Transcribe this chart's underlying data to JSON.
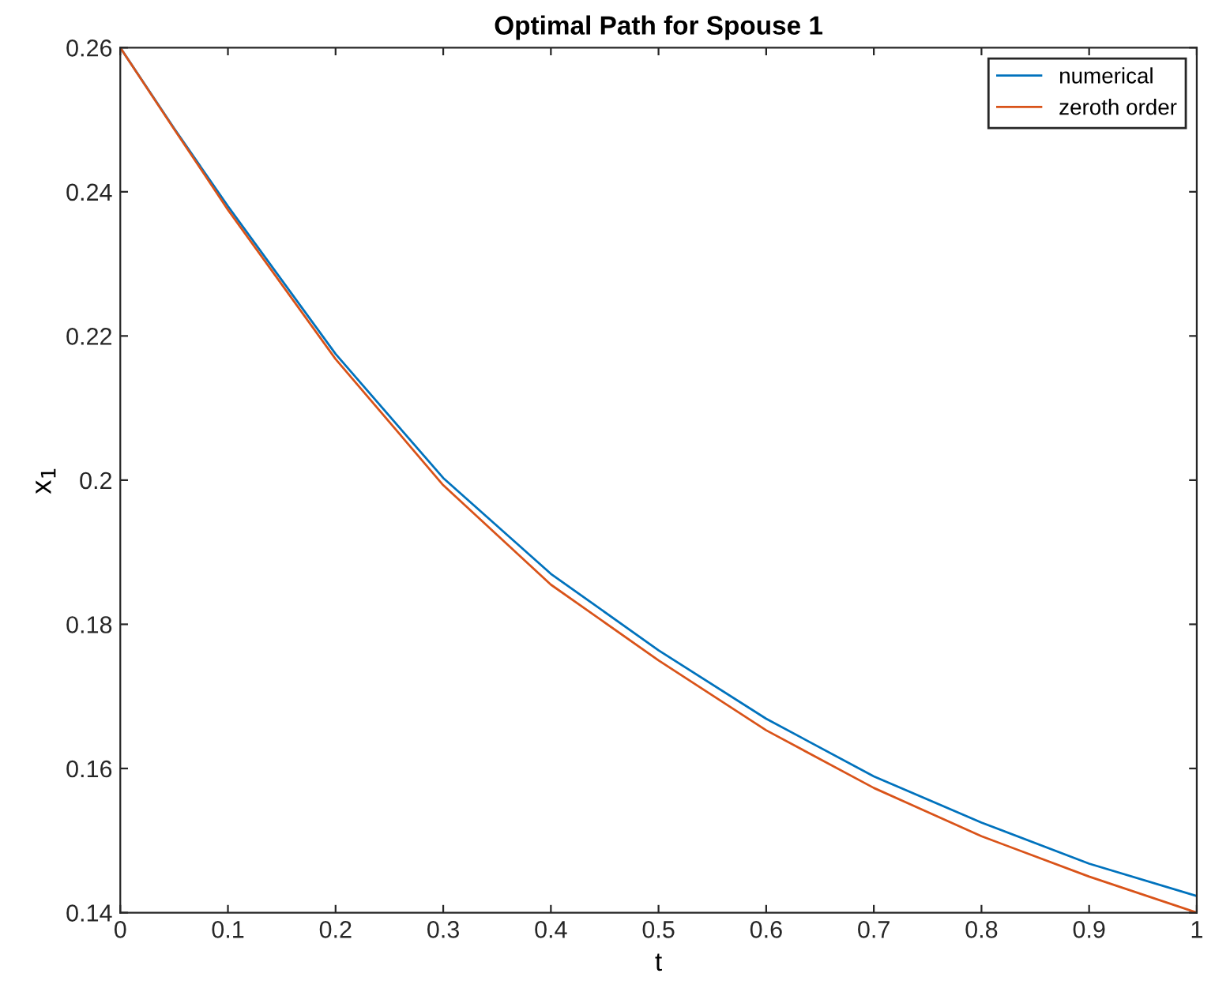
{
  "chart_data": {
    "type": "line",
    "title": "Optimal Path for Spouse 1",
    "xlabel": "t",
    "ylabel": "x$_{1}$",
    "x": [
      0,
      0.05,
      0.1,
      0.2,
      0.3,
      0.4,
      0.5,
      0.6,
      0.7,
      0.8,
      0.9,
      1
    ],
    "series": [
      {
        "name": "numerical",
        "color": "#0072bd",
        "values": [
          0.26,
          0.2488,
          0.238,
          0.2175,
          0.2003,
          0.187,
          0.1764,
          0.1669,
          0.1589,
          0.1525,
          0.1468,
          0.1423
        ]
      },
      {
        "name": "zeroth order",
        "color": "#d95319",
        "values": [
          0.26,
          0.2487,
          0.2375,
          0.2168,
          0.1993,
          0.1855,
          0.175,
          0.1653,
          0.1573,
          0.1506,
          0.145,
          0.14
        ]
      }
    ],
    "xlim": [
      0,
      1
    ],
    "ylim": [
      0.14,
      0.26
    ],
    "xticks": [
      0,
      0.1,
      0.2,
      0.3,
      0.4,
      0.5,
      0.6,
      0.7,
      0.8,
      0.9,
      1
    ],
    "yticks": [
      0.14,
      0.16,
      0.18,
      0.2,
      0.22,
      0.24,
      0.26
    ],
    "grid": false,
    "legend": "top right",
    "marker": "none",
    "line_style": "solid"
  }
}
